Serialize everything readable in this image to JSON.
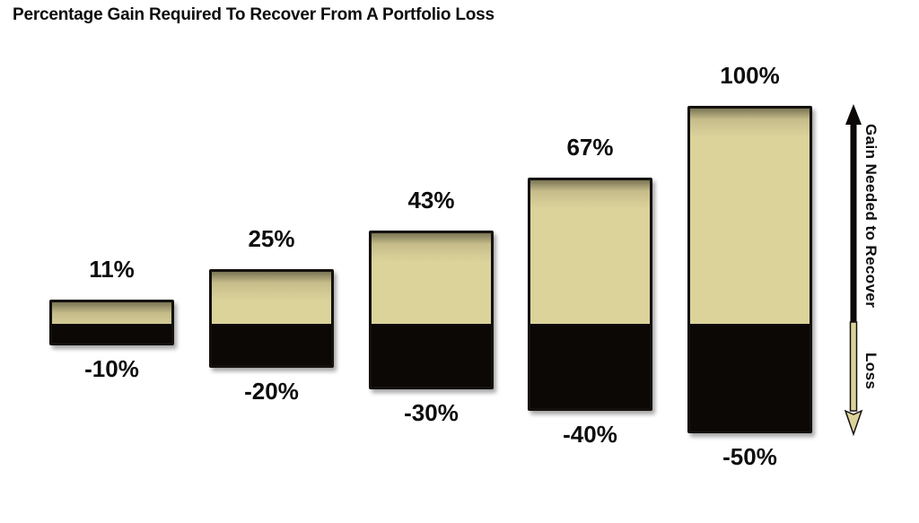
{
  "title": "Percentage Gain Required To Recover From A Portfolio Loss",
  "chart_data": {
    "type": "bar",
    "title": "Percentage Gain Required To Recover From A Portfolio Loss",
    "orientation": "vertical",
    "baseline": 0,
    "categories": [
      "-10%",
      "-20%",
      "-30%",
      "-40%",
      "-50%"
    ],
    "series": [
      {
        "name": "Gain Needed to Recover",
        "values": [
          11,
          25,
          43,
          67,
          100
        ],
        "color": "#dcd39b"
      },
      {
        "name": "Loss",
        "values": [
          -10,
          -20,
          -30,
          -40,
          -50
        ],
        "color": "#0b0806"
      }
    ],
    "data_labels": {
      "gain": [
        "11%",
        "25%",
        "43%",
        "67%",
        "100%"
      ],
      "loss": [
        "-10%",
        "-20%",
        "-30%",
        "-40%",
        "-50%"
      ]
    },
    "axes": {
      "x_axis_visible": false,
      "y_axis_visible": false,
      "gridlines": false
    },
    "legend_position": "right-vertical-arrow"
  },
  "annotation": {
    "gain_axis_label": "Gain Needed to Recover",
    "loss_axis_label": "Loss"
  },
  "colors": {
    "background": "#ffffff",
    "text": "#0d0d0d",
    "gain_fill": "#dcd39b",
    "gain_fill_shade": "#7b7554",
    "loss_fill": "#0b0806",
    "bar_border": "#14110e"
  }
}
